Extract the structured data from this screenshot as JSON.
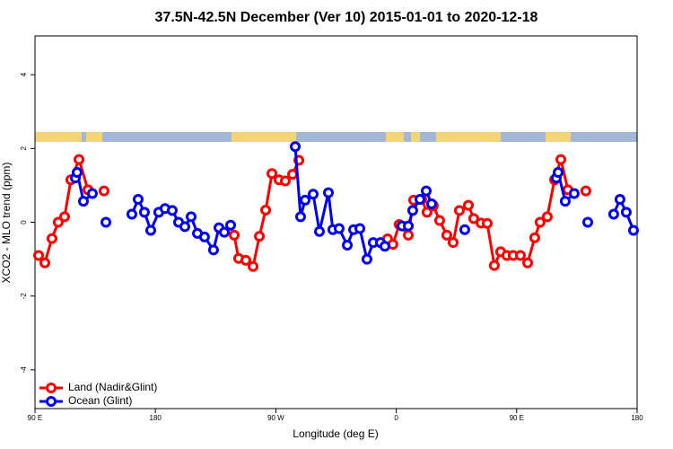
{
  "chart_data": {
    "type": "line",
    "title": "37.5N-42.5N December (Ver 10)   2015-01-01 to 2020-12-18",
    "x_label": "Longitude (deg E)",
    "y_label": "XCO2 - MLO trend (ppm)",
    "xlim": [
      90,
      540
    ],
    "ylim": [
      -5.05,
      5.05
    ],
    "xticks": [
      {
        "value": 90,
        "label": "90 E"
      },
      180,
      {
        "value": 270,
        "label": "90 W"
      },
      {
        "value": 360,
        "label": "0"
      },
      {
        "value": 450,
        "label": "90 E"
      },
      {
        "value": 540,
        "label": "180"
      }
    ],
    "yticks": [
      -4,
      -2,
      0,
      2,
      4
    ],
    "legend": "bottomleft",
    "series": [
      {
        "name": "Land (Nadir&Glint)",
        "color": "#ff0000",
        "x": [
          92.7,
          97.4,
          102.7,
          107.4,
          112.1,
          116.8,
          122.9,
          129.6,
          null,
          141.6,
          null,
          238.9,
          242.2,
          247.6,
          253,
          257.7,
          262.4,
          267.1,
          272.4,
          277.1,
          282.5,
          287.2,
          null,
          353.5,
          357.5,
          362.2,
          369,
          373,
          379,
          383,
          387.7,
          392.4,
          397.8,
          402.5,
          407.2,
          413.9,
          417.9,
          423.3,
          428,
          433.3,
          438,
          442.7,
          447.4,
          452.8,
          458.2,
          463.5,
          467.5,
          472.9,
          478.3,
          483,
          488.3,
          null,
          501.7
        ],
        "values": [
          -0.9,
          -1.1,
          -0.44,
          0,
          0.15,
          1.15,
          1.7,
          0.88,
          null,
          0.85,
          null,
          -0.35,
          -0.98,
          -1.03,
          -1.2,
          -0.38,
          0.33,
          1.32,
          1.15,
          1.12,
          1.3,
          1.68,
          null,
          -0.45,
          -0.6,
          -0.06,
          -0.35,
          0.6,
          0.62,
          0.27,
          0.45,
          0.05,
          -0.35,
          -0.55,
          0.32,
          0.46,
          0.1,
          -0.02,
          -0.03,
          -1.17,
          -0.8,
          -0.9,
          -0.9,
          -0.9,
          -1.1,
          -0.42,
          0,
          0.15,
          1.15,
          1.7,
          0.88,
          null,
          0.85
        ]
      },
      {
        "name": "Ocean (Glint)",
        "color": "#0000ee",
        "x": [
          120.2,
          121.5,
          126.2,
          132.9,
          null,
          143,
          null,
          162.4,
          167.1,
          171.8,
          176.5,
          182.5,
          187.2,
          192.6,
          197.3,
          202,
          206.7,
          211.4,
          216.7,
          223.4,
          227.5,
          231.5,
          236.2,
          null,
          284.5,
          288.5,
          291.9,
          297.9,
          302.6,
          309.3,
          312.6,
          317.3,
          323.4,
          328.1,
          332.8,
          338.1,
          342.8,
          348.2,
          351.5,
          null,
          364.3,
          369,
          372.3,
          377.7,
          382.4,
          386.4,
          null,
          411.2,
          null,
          479.6,
          481,
          486.3,
          493,
          null,
          503.1,
          null,
          522.5,
          527.2,
          531.9,
          537.3
        ],
        "values": [
          1.2,
          1.35,
          0.57,
          0.78,
          null,
          0,
          null,
          0.22,
          0.62,
          0.27,
          -0.22,
          0.27,
          0.37,
          0.32,
          0,
          -0.12,
          0.15,
          -0.3,
          -0.4,
          -0.75,
          -0.15,
          -0.27,
          -0.08,
          null,
          2.05,
          0.15,
          0.6,
          0.76,
          -0.25,
          0.8,
          -0.2,
          -0.17,
          -0.62,
          -0.2,
          -0.17,
          -1,
          -0.55,
          -0.55,
          -0.65,
          null,
          -0.1,
          -0.1,
          0.32,
          0.62,
          0.85,
          0.5,
          null,
          -0.2,
          null,
          1.2,
          1.35,
          0.57,
          0.78,
          null,
          0,
          null,
          0.22,
          0.62,
          0.27,
          -0.22
        ]
      }
    ]
  }
}
